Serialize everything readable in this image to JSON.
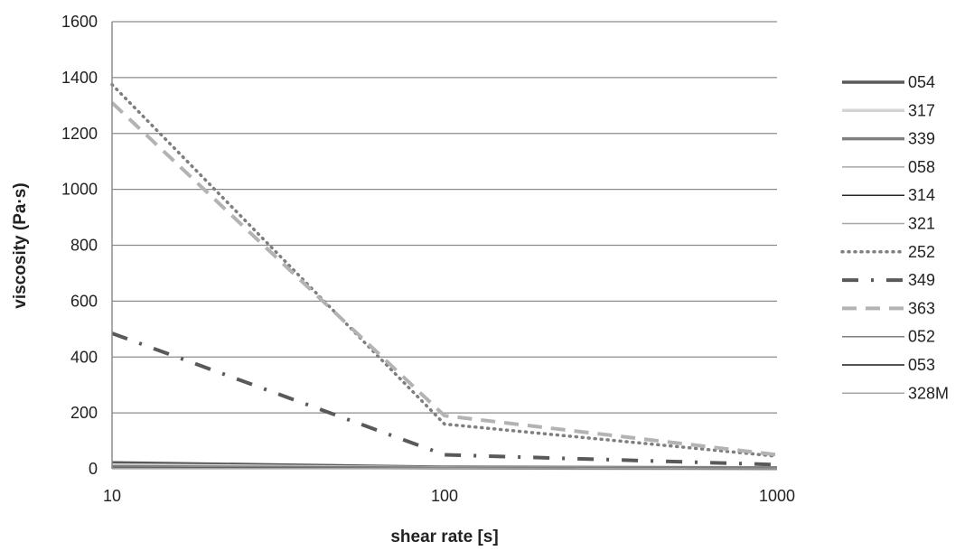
{
  "chart_data": {
    "type": "line",
    "xlabel": "shear rate [s]",
    "ylabel": "viscosity (Pa·s)",
    "xscale": "log",
    "xlim": [
      10,
      1000
    ],
    "ylim": [
      0,
      1600
    ],
    "xticks": [
      "10",
      "100",
      "1000"
    ],
    "yticks": [
      "0",
      "200",
      "400",
      "600",
      "800",
      "1000",
      "1200",
      "1400",
      "1600"
    ],
    "grid": "horizontal",
    "legend_position": "right",
    "series": [
      {
        "name": "054",
        "color": "#595959",
        "width": 3.5,
        "dash": "",
        "x": [
          10,
          100,
          1000
        ],
        "y": [
          22,
          6,
          4
        ]
      },
      {
        "name": "317",
        "color": "#d4d4d4",
        "width": 3.5,
        "dash": "",
        "x": [
          10,
          100,
          1000
        ],
        "y": [
          14,
          4,
          2
        ]
      },
      {
        "name": "339",
        "color": "#7f7f7f",
        "width": 3.5,
        "dash": "",
        "x": [
          10,
          100,
          1000
        ],
        "y": [
          8,
          3,
          1
        ]
      },
      {
        "name": "058",
        "color": "#a6a6a6",
        "width": 1.5,
        "dash": "",
        "x": [
          10,
          100,
          1000
        ],
        "y": [
          6,
          2,
          1
        ]
      },
      {
        "name": "314",
        "color": "#262626",
        "width": 1.5,
        "dash": "",
        "x": [
          10,
          100,
          1000
        ],
        "y": [
          5,
          2,
          1
        ]
      },
      {
        "name": "321",
        "color": "#a6a6a6",
        "width": 1.5,
        "dash": "",
        "x": [
          10,
          100,
          1000
        ],
        "y": [
          4,
          2,
          1
        ]
      },
      {
        "name": "252",
        "color": "#7f7f7f",
        "width": 3.5,
        "dash": "1 6",
        "x": [
          10,
          100,
          1000
        ],
        "y": [
          1375,
          160,
          45
        ]
      },
      {
        "name": "349",
        "color": "#595959",
        "width": 4,
        "dash": "18 14 3 14",
        "x": [
          10,
          100,
          1000
        ],
        "y": [
          485,
          50,
          15
        ]
      },
      {
        "name": "363",
        "color": "#b3b3b3",
        "width": 4,
        "dash": "16 10",
        "x": [
          10,
          100,
          1000
        ],
        "y": [
          1310,
          190,
          50
        ]
      },
      {
        "name": "052",
        "color": "#7f7f7f",
        "width": 1.5,
        "dash": "",
        "x": [
          10,
          100,
          1000
        ],
        "y": [
          3,
          1,
          1
        ]
      },
      {
        "name": "053",
        "color": "#1a1a1a",
        "width": 1.5,
        "dash": "",
        "x": [
          10,
          100,
          1000
        ],
        "y": [
          2,
          1,
          0
        ]
      },
      {
        "name": "328M",
        "color": "#a6a6a6",
        "width": 1.5,
        "dash": "",
        "x": [
          10,
          100,
          1000
        ],
        "y": [
          1,
          1,
          0
        ]
      }
    ]
  }
}
